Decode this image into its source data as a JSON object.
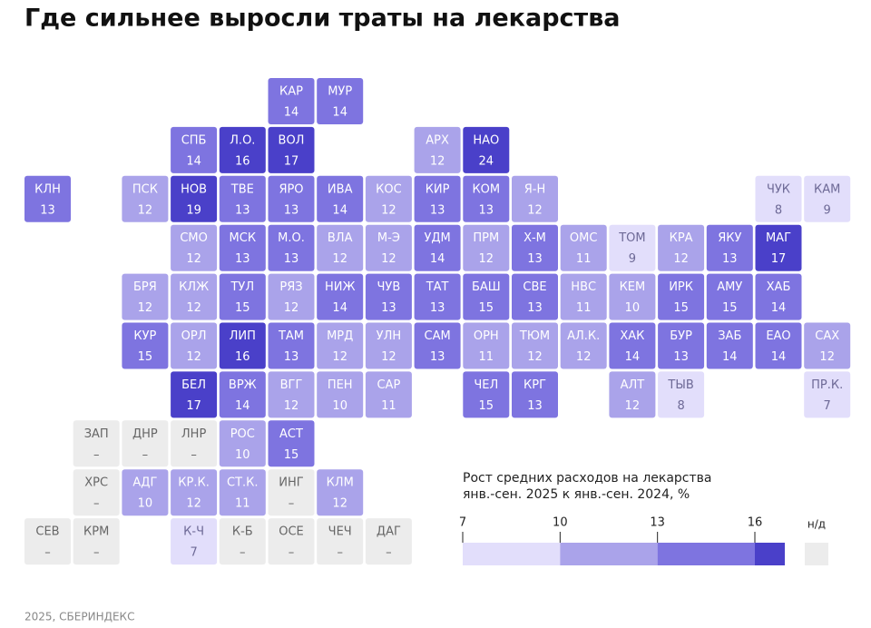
{
  "title": "Где сильнее выросли траты на лекарства",
  "footer": "2025, СБЕРИНДЕКС",
  "scale": {
    "thresholds": [
      10,
      13,
      16
    ],
    "colors": [
      "#e2defb",
      "#aaa3ea",
      "#7e74e0",
      "#4a40c9"
    ],
    "na_color": "#ececec"
  },
  "legend": {
    "title": [
      "Рост средних расходов на лекарства",
      "янв.-сен. 2025 к янв.-сен. 2024, %"
    ],
    "ticks": [
      7,
      10,
      13,
      16
    ],
    "na_label": "н/д"
  },
  "tiles": [
    {
      "label": "КАР",
      "value": 14
    },
    {
      "label": "МУР",
      "value": 14
    },
    {
      "label": "СПБ",
      "value": 14
    },
    {
      "label": "Л.О.",
      "value": 16
    },
    {
      "label": "ВОЛ",
      "value": 17
    },
    {
      "label": "АРХ",
      "value": 12
    },
    {
      "label": "НАО",
      "value": 24
    },
    {
      "label": "КЛН",
      "value": 13
    },
    {
      "label": "ПСК",
      "value": 12
    },
    {
      "label": "НОВ",
      "value": 19
    },
    {
      "label": "ТВЕ",
      "value": 13
    },
    {
      "label": "ЯРО",
      "value": 13
    },
    {
      "label": "ИВА",
      "value": 14
    },
    {
      "label": "КОС",
      "value": 12
    },
    {
      "label": "КИР",
      "value": 13
    },
    {
      "label": "КОМ",
      "value": 13
    },
    {
      "label": "Я-Н",
      "value": 12
    },
    {
      "label": "ЧУК",
      "value": 8
    },
    {
      "label": "КАМ",
      "value": 9
    },
    {
      "label": "СМО",
      "value": 12
    },
    {
      "label": "МСК",
      "value": 13
    },
    {
      "label": "М.О.",
      "value": 13
    },
    {
      "label": "ВЛА",
      "value": 12
    },
    {
      "label": "М-Э",
      "value": 12
    },
    {
      "label": "УДМ",
      "value": 14
    },
    {
      "label": "ПРМ",
      "value": 12
    },
    {
      "label": "Х-М",
      "value": 13
    },
    {
      "label": "ОМС",
      "value": 11
    },
    {
      "label": "ТОМ",
      "value": 9
    },
    {
      "label": "КРА",
      "value": 12
    },
    {
      "label": "ЯКУ",
      "value": 13
    },
    {
      "label": "МАГ",
      "value": 17
    },
    {
      "label": "БРЯ",
      "value": 12
    },
    {
      "label": "КЛЖ",
      "value": 12
    },
    {
      "label": "ТУЛ",
      "value": 15
    },
    {
      "label": "РЯЗ",
      "value": 12
    },
    {
      "label": "НИЖ",
      "value": 14
    },
    {
      "label": "ЧУВ",
      "value": 13
    },
    {
      "label": "ТАТ",
      "value": 13
    },
    {
      "label": "БАШ",
      "value": 15
    },
    {
      "label": "СВЕ",
      "value": 13
    },
    {
      "label": "НВС",
      "value": 11
    },
    {
      "label": "КЕМ",
      "value": 10
    },
    {
      "label": "ИРК",
      "value": 15
    },
    {
      "label": "АМУ",
      "value": 15
    },
    {
      "label": "ХАБ",
      "value": 14
    },
    {
      "label": "КУР",
      "value": 15
    },
    {
      "label": "ОРЛ",
      "value": 12
    },
    {
      "label": "ЛИП",
      "value": 16
    },
    {
      "label": "ТАМ",
      "value": 13
    },
    {
      "label": "МРД",
      "value": 12
    },
    {
      "label": "УЛН",
      "value": 12
    },
    {
      "label": "САМ",
      "value": 13
    },
    {
      "label": "ОРН",
      "value": 11
    },
    {
      "label": "ТЮМ",
      "value": 12
    },
    {
      "label": "АЛ.К.",
      "value": 12
    },
    {
      "label": "ХАК",
      "value": 14
    },
    {
      "label": "БУР",
      "value": 13
    },
    {
      "label": "ЗАБ",
      "value": 14
    },
    {
      "label": "ЕАО",
      "value": 14
    },
    {
      "label": "САХ",
      "value": 12
    },
    {
      "label": "БЕЛ",
      "value": 17
    },
    {
      "label": "ВРЖ",
      "value": 14
    },
    {
      "label": "ВГГ",
      "value": 12
    },
    {
      "label": "ПЕН",
      "value": 10
    },
    {
      "label": "САР",
      "value": 11
    },
    {
      "label": "ЧЕЛ",
      "value": 15
    },
    {
      "label": "КРГ",
      "value": 13
    },
    {
      "label": "АЛТ",
      "value": 12
    },
    {
      "label": "ТЫВ",
      "value": 8
    },
    {
      "label": "ПР.К.",
      "value": 7
    },
    {
      "label": "ЗАП",
      "value": "–"
    },
    {
      "label": "ДНР",
      "value": "–"
    },
    {
      "label": "ЛНР",
      "value": "–"
    },
    {
      "label": "РОС",
      "value": 10
    },
    {
      "label": "АСТ",
      "value": 15
    },
    {
      "label": "ХРС",
      "value": "–"
    },
    {
      "label": "АДГ",
      "value": 10
    },
    {
      "label": "КР.К.",
      "value": 12
    },
    {
      "label": "СТ.К.",
      "value": 11
    },
    {
      "label": "ИНГ",
      "value": "–"
    },
    {
      "label": "КЛМ",
      "value": 12
    },
    {
      "label": "СЕВ",
      "value": "–"
    },
    {
      "label": "КРМ",
      "value": "–"
    },
    {
      "label": "К-Ч",
      "value": 7
    },
    {
      "label": "К-Б",
      "value": "–"
    },
    {
      "label": "ОСЕ",
      "value": "–"
    },
    {
      "label": "ЧЕЧ",
      "value": "–"
    },
    {
      "label": "ДАГ",
      "value": "–"
    }
  ]
}
